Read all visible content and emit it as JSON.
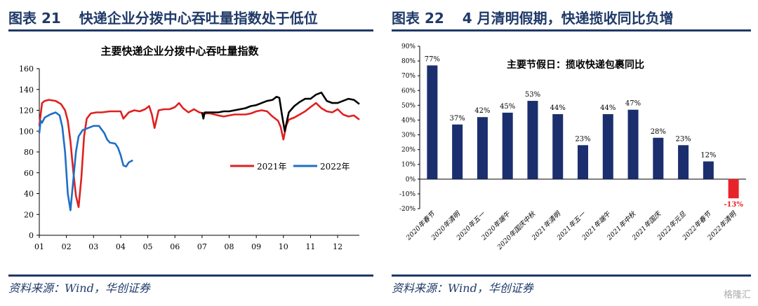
{
  "left": {
    "figure_label": "图表 21",
    "figure_title": "快递企业分拨中心吞吐量指数处于低位",
    "source": "资料来源：Wind，华创证券"
  },
  "right": {
    "figure_label": "图表 22",
    "figure_title": "4 月清明假期，快递揽收同比负增",
    "source": "资料来源：Wind，华创证券"
  },
  "watermark": "格隆汇",
  "chart_data": [
    {
      "type": "line",
      "title": "主要快递企业分拨中心吞吐量指数",
      "ylim": [
        0,
        160
      ],
      "yticks": [
        0,
        20,
        40,
        60,
        80,
        100,
        120,
        140,
        160
      ],
      "xticks": [
        "01",
        "02",
        "03",
        "04",
        "05",
        "06",
        "07",
        "08",
        "09",
        "10",
        "11",
        "12"
      ],
      "legend": "inside-right",
      "series": [
        {
          "name": "2021年",
          "color": "#e02020",
          "x": [
            1.0,
            1.1,
            1.2,
            1.35,
            1.6,
            1.8,
            1.95,
            2.05,
            2.15,
            2.25,
            2.35,
            2.45,
            2.55,
            2.65,
            2.75,
            2.9,
            3.1,
            3.3,
            3.6,
            3.8,
            4.0,
            4.1,
            4.3,
            4.5,
            4.7,
            4.9,
            5.05,
            5.15,
            5.25,
            5.4,
            5.6,
            5.8,
            6.0,
            6.15,
            6.3,
            6.5,
            6.7,
            6.9,
            7.1,
            7.3,
            7.6,
            7.8,
            8.0,
            8.2,
            8.4,
            8.6,
            8.8,
            9.0,
            9.2,
            9.4,
            9.6,
            9.8,
            9.9,
            10.0,
            10.1,
            10.2,
            10.4,
            10.6,
            10.8,
            11.0,
            11.2,
            11.4,
            11.6,
            11.8,
            12.0,
            12.2,
            12.4,
            12.6,
            12.8
          ],
          "values": [
            105,
            127,
            129,
            130,
            129,
            126,
            120,
            110,
            90,
            62,
            38,
            27,
            55,
            95,
            112,
            117,
            118,
            118,
            119,
            119,
            119,
            112,
            118,
            120,
            119,
            121,
            124,
            116,
            103,
            120,
            121,
            121,
            123,
            127,
            122,
            118,
            121,
            118,
            117,
            117,
            115,
            114,
            115,
            116,
            116,
            116,
            117,
            119,
            120,
            119,
            114,
            110,
            104,
            92,
            105,
            111,
            113,
            116,
            119,
            123,
            127,
            122,
            119,
            118,
            121,
            116,
            114,
            115,
            111
          ]
        },
        {
          "name": "2022年",
          "color": "#1f6fc5",
          "x": [
            1.0,
            1.05,
            1.1,
            1.2,
            1.4,
            1.6,
            1.75,
            1.85,
            1.95,
            2.05,
            2.15,
            2.25,
            2.35,
            2.45,
            2.6,
            2.8,
            3.0,
            3.2,
            3.4,
            3.5,
            3.6,
            3.8,
            3.9,
            4.0,
            4.1,
            4.2,
            4.3,
            4.45
          ],
          "values": [
            98,
            110,
            108,
            113,
            116,
            118,
            115,
            104,
            80,
            40,
            24,
            52,
            80,
            95,
            101,
            103,
            105,
            105,
            98,
            92,
            89,
            88,
            84,
            77,
            67,
            66,
            70,
            72
          ]
        },
        {
          "name": "",
          "color": "#000000",
          "x": [
            7.0,
            7.05,
            7.1,
            7.3,
            7.6,
            7.8,
            8.0,
            8.2,
            8.4,
            8.6,
            8.8,
            9.0,
            9.2,
            9.4,
            9.6,
            9.75,
            9.85,
            9.95,
            10.05,
            10.2,
            10.4,
            10.6,
            10.8,
            11.0,
            11.2,
            11.4,
            11.6,
            11.8,
            12.0,
            12.2,
            12.4,
            12.6,
            12.8
          ],
          "values": [
            118,
            112,
            118,
            118,
            118,
            119,
            119,
            120,
            121,
            122,
            124,
            125,
            127,
            129,
            130,
            133,
            132,
            115,
            100,
            118,
            124,
            128,
            131,
            131,
            135,
            137,
            129,
            127,
            127,
            129,
            131,
            130,
            126
          ]
        }
      ]
    },
    {
      "type": "bar",
      "title": "主要节假日：揽收快递包裹同比",
      "ylim": [
        -20,
        90
      ],
      "yticks": [
        "-20%",
        "-10%",
        "0%",
        "10%",
        "20%",
        "30%",
        "40%",
        "50%",
        "60%",
        "70%",
        "80%",
        "90%"
      ],
      "categories": [
        "2020年春节",
        "2020年清明",
        "2020年五一",
        "2020年端午",
        "2020年国庆中秋",
        "2021年清明",
        "2021年五一",
        "2021年端午",
        "2021年中秋",
        "2021年国庆",
        "2022年元旦",
        "2022年春节",
        "2022年清明"
      ],
      "values": [
        77,
        37,
        42,
        45,
        53,
        44,
        23,
        44,
        47,
        28,
        23,
        12,
        -13
      ],
      "labels": [
        "77%",
        "37%",
        "42%",
        "45%",
        "53%",
        "44%",
        "23%",
        "44%",
        "47%",
        "28%",
        "23%",
        "12%",
        "-13%"
      ],
      "colors": {
        "positive": "#1b2f6e",
        "negative": "#e8242a"
      }
    }
  ]
}
